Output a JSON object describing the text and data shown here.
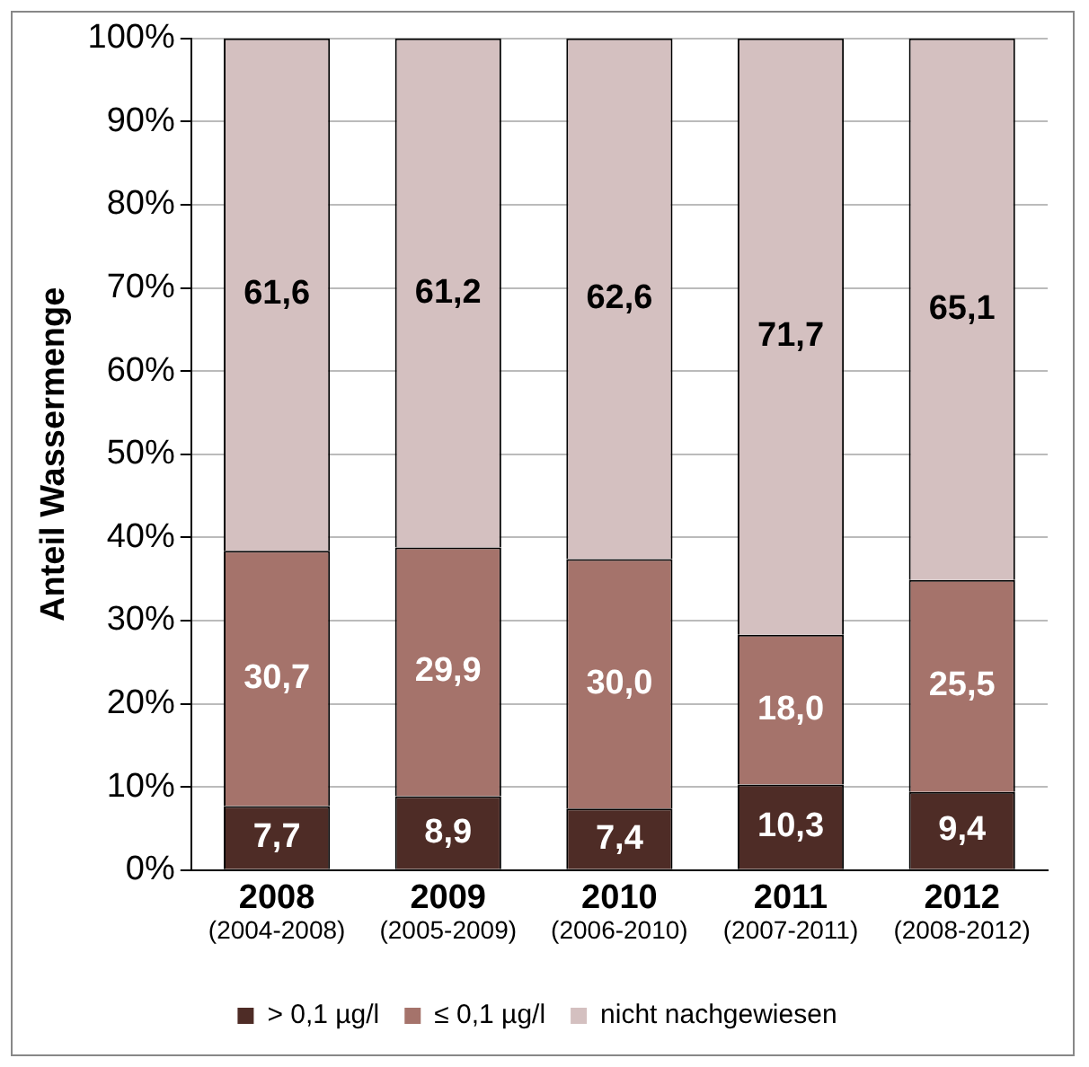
{
  "chart_data": {
    "type": "bar",
    "stacked": true,
    "ylabel": "Anteil Wassermenge",
    "categories": [
      "2008\n(2004-2008)",
      "2009\n(2005-2009)",
      "2010\n(2006-2010)",
      "2011\n(2007-2011)",
      "2012\n(2008-2012)"
    ],
    "series": [
      {
        "name": "> 0,1 µg/l",
        "color": "#4e2c26",
        "values": [
          7.7,
          8.9,
          7.4,
          10.3,
          9.4
        ],
        "value_labels": [
          "7,7",
          "8,9",
          "7,4",
          "10,3",
          "9,4"
        ]
      },
      {
        "name": "≤ 0,1 µg/l",
        "color": "#a5736b",
        "values": [
          30.7,
          29.9,
          30.0,
          18.0,
          25.5
        ],
        "value_labels": [
          "30,7",
          "29,9",
          "30,0",
          "18,0",
          "25,5"
        ]
      },
      {
        "name": "nicht nachgewiesen",
        "color": "#d4c0c0",
        "values": [
          61.6,
          61.2,
          62.6,
          71.7,
          65.1
        ],
        "value_labels": [
          "61,6",
          "61,2",
          "62,6",
          "71,7",
          "65,1"
        ]
      }
    ],
    "ylim": [
      0,
      100
    ],
    "yticks": [
      {
        "value": 0,
        "label": "0%"
      },
      {
        "value": 10,
        "label": "10%"
      },
      {
        "value": 20,
        "label": "20%"
      },
      {
        "value": 30,
        "label": "30%"
      },
      {
        "value": 40,
        "label": "40%"
      },
      {
        "value": 50,
        "label": "50%"
      },
      {
        "value": 60,
        "label": "60%"
      },
      {
        "value": 70,
        "label": "70%"
      },
      {
        "value": 80,
        "label": "80%"
      },
      {
        "value": 90,
        "label": "90%"
      },
      {
        "value": 100,
        "label": "100%"
      }
    ],
    "grid": "y",
    "legend": "bottom"
  }
}
